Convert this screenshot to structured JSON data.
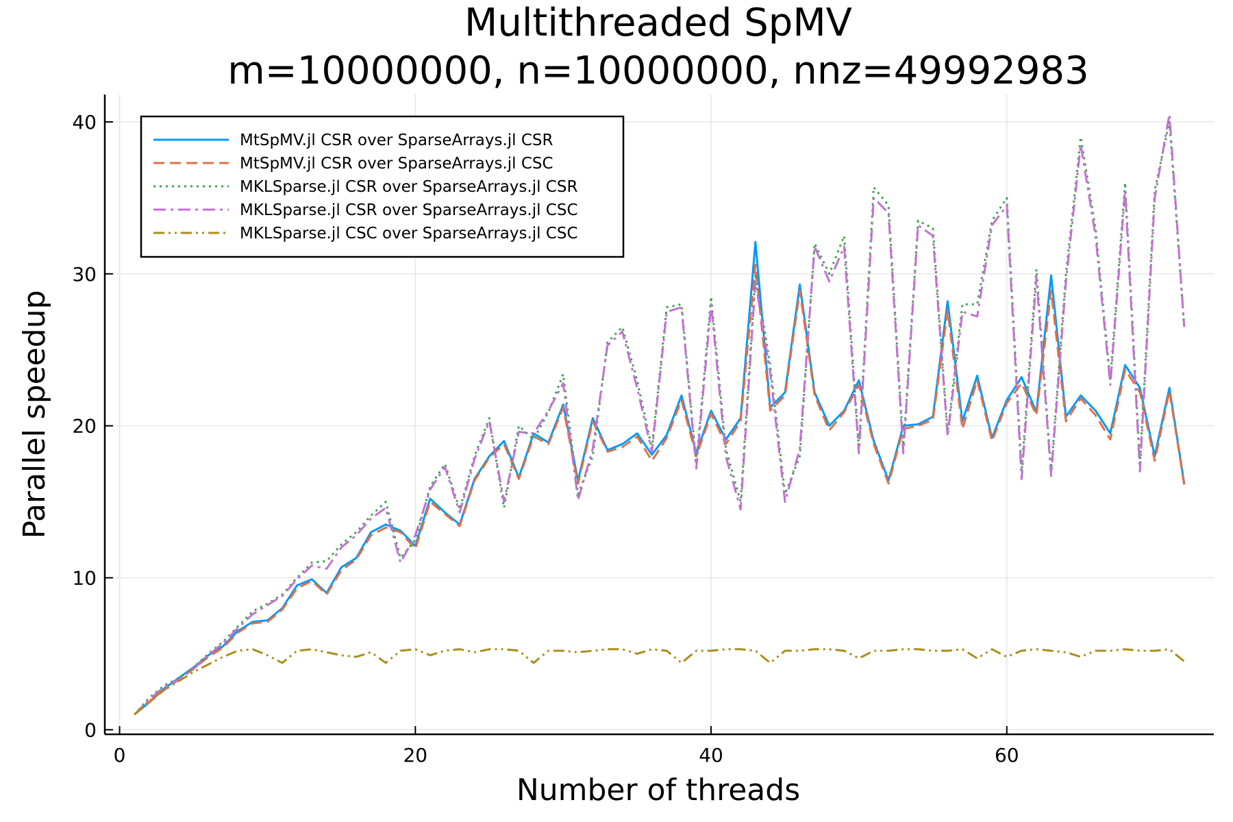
{
  "chart_data": {
    "type": "line",
    "title": "Multithreaded SpMV",
    "subtitle": "m=10000000, n=10000000, nnz=49992983",
    "xlabel": "Number of threads",
    "ylabel": "Parallel speedup",
    "xlim": [
      -1,
      74
    ],
    "ylim": [
      -0.3,
      41.8
    ],
    "xticks": [
      0,
      20,
      40,
      60
    ],
    "yticks": [
      0,
      10,
      20,
      30,
      40
    ],
    "grid": true,
    "legend_position": "top-left",
    "x": [
      1,
      2,
      3,
      4,
      5,
      6,
      7,
      8,
      9,
      10,
      11,
      12,
      13,
      14,
      15,
      16,
      17,
      18,
      19,
      20,
      21,
      22,
      23,
      24,
      25,
      26,
      27,
      28,
      29,
      30,
      31,
      32,
      33,
      34,
      35,
      36,
      37,
      38,
      39,
      40,
      41,
      42,
      43,
      44,
      45,
      46,
      47,
      48,
      49,
      50,
      51,
      52,
      53,
      54,
      55,
      56,
      57,
      58,
      59,
      60,
      61,
      62,
      63,
      64,
      65,
      66,
      67,
      68,
      69,
      70,
      71,
      72
    ],
    "series": [
      {
        "name": "MtSpMV.jl CSR over SparseArrays.jl CSR",
        "color": "#009AFA",
        "dash": "solid",
        "values": [
          1.0,
          1.8,
          2.7,
          3.4,
          4.1,
          4.9,
          5.5,
          6.5,
          7.1,
          7.2,
          8.0,
          9.5,
          9.9,
          9.0,
          10.7,
          11.3,
          13.0,
          13.5,
          13.1,
          12.1,
          15.2,
          14.3,
          13.5,
          16.5,
          18.0,
          19.0,
          16.6,
          19.5,
          18.9,
          21.4,
          16.4,
          20.5,
          18.4,
          18.8,
          19.5,
          18.1,
          19.4,
          22.0,
          18.2,
          21.0,
          19.1,
          20.5,
          32.1,
          21.2,
          22.2,
          29.3,
          22.2,
          20.0,
          21.0,
          23.0,
          19.0,
          16.4,
          20.0,
          20.1,
          20.6,
          28.2,
          20.3,
          23.3,
          19.2,
          21.7,
          23.2,
          20.9,
          29.9,
          20.6,
          22.0,
          21.0,
          19.5,
          24.0,
          22.5,
          18.0,
          22.5,
          16.2
        ]
      },
      {
        "name": "MtSpMV.jl CSR over SparseArrays.jl CSC",
        "color": "#E26F46",
        "dash": "dash",
        "values": [
          1.0,
          1.8,
          2.6,
          3.3,
          4.0,
          4.8,
          5.4,
          6.4,
          7.0,
          7.1,
          7.9,
          9.3,
          9.8,
          8.9,
          10.5,
          11.2,
          12.8,
          13.3,
          13.0,
          11.9,
          15.0,
          14.2,
          13.4,
          16.4,
          17.9,
          18.8,
          16.5,
          19.3,
          18.8,
          21.2,
          16.2,
          20.3,
          18.3,
          18.6,
          19.3,
          17.7,
          19.2,
          21.7,
          18.0,
          20.8,
          18.8,
          20.3,
          30.6,
          21.0,
          22.0,
          28.9,
          22.0,
          19.7,
          20.9,
          22.7,
          18.8,
          16.2,
          19.8,
          20.0,
          20.4,
          27.6,
          19.8,
          23.0,
          19.0,
          21.5,
          22.8,
          20.7,
          28.9,
          20.3,
          21.8,
          20.7,
          19.1,
          23.7,
          22.2,
          17.7,
          22.3,
          16.1
        ]
      },
      {
        "name": "MKLSparse.jl CSR over SparseArrays.jl CSR",
        "color": "#3DA44D",
        "dash": "dot",
        "values": [
          1.0,
          2.1,
          2.9,
          3.4,
          4.1,
          5.0,
          5.8,
          6.8,
          7.8,
          8.3,
          8.9,
          10.0,
          11.0,
          11.1,
          12.2,
          13.0,
          14.1,
          15.0,
          11.3,
          12.5,
          16.0,
          17.5,
          14.5,
          18.0,
          20.5,
          14.6,
          20.0,
          19.1,
          20.9,
          23.4,
          15.5,
          18.0,
          25.5,
          26.5,
          23.0,
          18.5,
          27.8,
          28.0,
          17.5,
          28.5,
          18.5,
          15.0,
          30.0,
          24.0,
          15.5,
          18.0,
          32.0,
          30.0,
          32.5,
          18.5,
          35.7,
          34.5,
          18.5,
          33.5,
          33.0,
          19.5,
          28.0,
          28.0,
          33.5,
          35.0,
          17.0,
          30.3,
          17.0,
          30.0,
          39.0,
          33.0,
          23.0,
          36.0,
          17.5,
          35.5,
          40.0,
          26.5
        ]
      },
      {
        "name": "MKLSparse.jl CSR over SparseArrays.jl CSC",
        "color": "#C271D2",
        "dash": "dashdot",
        "values": [
          1.0,
          2.0,
          2.8,
          3.3,
          4.0,
          4.9,
          5.7,
          6.7,
          7.6,
          8.2,
          8.8,
          9.9,
          10.8,
          10.6,
          12.0,
          12.8,
          13.9,
          14.6,
          11.0,
          12.8,
          15.8,
          17.3,
          14.3,
          17.8,
          20.3,
          15.0,
          19.6,
          19.5,
          21.0,
          22.8,
          15.1,
          18.5,
          25.3,
          26.2,
          22.5,
          18.3,
          27.5,
          27.8,
          17.2,
          28.0,
          18.0,
          14.5,
          29.5,
          23.5,
          15.0,
          18.5,
          31.8,
          29.5,
          31.8,
          18.2,
          35.0,
          34.0,
          18.2,
          33.2,
          32.5,
          19.3,
          27.5,
          27.2,
          33.2,
          34.5,
          16.5,
          29.8,
          16.7,
          29.5,
          38.5,
          32.5,
          22.7,
          35.5,
          17.0,
          35.0,
          40.5,
          26.5
        ]
      },
      {
        "name": "MKLSparse.jl CSC over SparseArrays.jl CSC",
        "color": "#AC8D18",
        "dash": "dashdotdot",
        "values": [
          1.0,
          1.9,
          2.6,
          3.2,
          3.8,
          4.3,
          4.8,
          5.2,
          5.3,
          4.9,
          4.4,
          5.2,
          5.3,
          5.1,
          4.9,
          4.8,
          5.1,
          4.4,
          5.2,
          5.3,
          4.9,
          5.2,
          5.3,
          5.1,
          5.3,
          5.3,
          5.2,
          4.4,
          5.2,
          5.2,
          5.1,
          5.2,
          5.3,
          5.3,
          5.0,
          5.3,
          5.2,
          4.4,
          5.2,
          5.2,
          5.3,
          5.3,
          5.2,
          4.4,
          5.2,
          5.2,
          5.3,
          5.3,
          5.2,
          4.7,
          5.2,
          5.2,
          5.3,
          5.3,
          5.2,
          5.2,
          5.3,
          4.7,
          5.3,
          4.8,
          5.2,
          5.3,
          5.2,
          5.1,
          4.8,
          5.2,
          5.2,
          5.3,
          5.2,
          5.2,
          5.3,
          4.5
        ]
      }
    ]
  }
}
